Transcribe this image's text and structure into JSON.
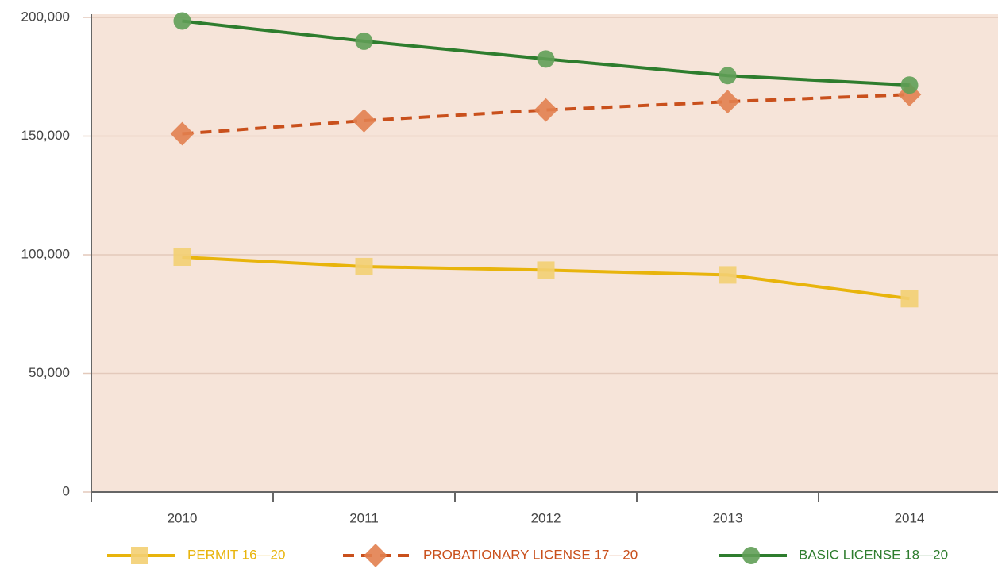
{
  "chart_data": {
    "type": "line",
    "categories": [
      "2010",
      "2011",
      "2012",
      "2013",
      "2014"
    ],
    "series": [
      {
        "name": "PERMIT 16—20",
        "color": "#e8b40c",
        "marker_color": "#f3cf72",
        "marker": "square",
        "line_style": "solid",
        "values": [
          99000,
          95000,
          93500,
          91500,
          81500
        ]
      },
      {
        "name": "PROBATIONARY LICENSE 17—20",
        "color": "#c9501c",
        "marker_color": "#e2804f",
        "marker": "diamond",
        "line_style": "dashed",
        "values": [
          151000,
          156500,
          161000,
          164500,
          167500
        ]
      },
      {
        "name": "BASIC LICENSE 18—20",
        "color": "#2e7d2e",
        "marker_color": "#609f57",
        "marker": "circle",
        "line_style": "solid",
        "values": [
          198500,
          190000,
          182500,
          175500,
          171500
        ]
      }
    ],
    "ylim": [
      0,
      200000
    ],
    "yticks": [
      0,
      {
        "value": 50000,
        "label": "50,000"
      },
      {
        "value": 100000,
        "label": "100,000"
      },
      {
        "value": 150000,
        "label": "150,000"
      },
      {
        "value": 200000,
        "label": "200,000"
      }
    ],
    "grid": true,
    "plot_background": "#f6e4d9",
    "legend": "bottom"
  }
}
